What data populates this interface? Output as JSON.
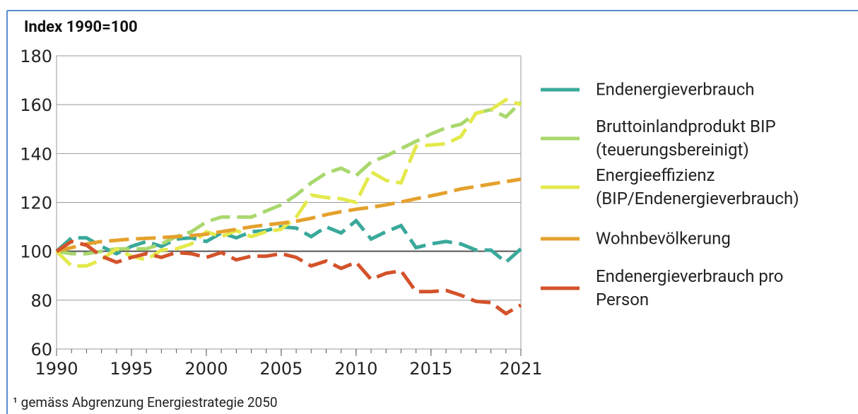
{
  "chart_data": {
    "type": "line",
    "title": "Index 1990=100",
    "footnote": "¹ gemäss Abgrenzung Energiestrategie 2050",
    "x": [
      1990,
      1991,
      1992,
      1993,
      1994,
      1995,
      1996,
      1997,
      1998,
      1999,
      2000,
      2001,
      2002,
      2003,
      2004,
      2005,
      2006,
      2007,
      2008,
      2009,
      2010,
      2011,
      2012,
      2013,
      2014,
      2015,
      2016,
      2017,
      2018,
      2019,
      2020,
      2021
    ],
    "xlim": [
      1990,
      2021
    ],
    "xticks": [
      1990,
      1995,
      2000,
      2005,
      2010,
      2015,
      2021
    ],
    "ylim": [
      60,
      180
    ],
    "yticks": [
      60,
      80,
      100,
      120,
      140,
      160,
      180
    ],
    "grid": true,
    "series": [
      {
        "name": "Endenergieverbrauch",
        "color": "#3aa99b",
        "values": [
          100,
          105.5,
          105.5,
          102,
          99,
          102,
          104,
          102,
          105,
          105.5,
          104,
          107.5,
          105.5,
          108,
          108.5,
          110,
          109.5,
          106,
          110,
          107.5,
          112.5,
          105,
          108,
          110.5,
          101.5,
          103,
          104,
          103,
          100.5,
          100.5,
          95.5,
          101
        ]
      },
      {
        "name": "Bruttoinlandprodukt BIP (teuerungsbereinigt)",
        "color": "#a9d86e",
        "values": [
          100,
          99,
          99,
          100,
          101,
          101,
          101,
          103,
          106,
          108,
          112,
          114,
          114,
          114,
          116.5,
          119,
          123,
          128,
          132,
          134,
          131,
          136.5,
          139,
          142,
          145,
          148,
          150.5,
          152,
          156.5,
          158,
          155,
          161
        ]
      },
      {
        "name": "Energieeffizienz (BIP/Endenergieverbrauch)",
        "color": "#e4e94c",
        "values": [
          100,
          94,
          94,
          96.5,
          101,
          98,
          96.5,
          100.5,
          101,
          103,
          108,
          106,
          108.5,
          106,
          108,
          109,
          114,
          123,
          122,
          121.5,
          120,
          132.5,
          129,
          128,
          143,
          143.5,
          144,
          147,
          156.5,
          158,
          162,
          160
        ]
      },
      {
        "name": "Wohnbevölkerung",
        "color": "#e5a12d",
        "values": [
          100,
          101.5,
          103,
          104,
          104.5,
          105,
          105.3,
          105.6,
          106,
          106.4,
          107,
          108,
          109,
          110,
          110.8,
          111.5,
          112.3,
          113.5,
          115,
          116.2,
          117.2,
          118,
          119,
          120.2,
          121.5,
          122.7,
          124,
          125.5,
          126.5,
          127.5,
          128.5,
          129.5
        ]
      },
      {
        "name": "Endenergieverbrauch pro Person",
        "color": "#d4522a",
        "values": [
          100,
          104,
          102.5,
          98,
          95.5,
          97.5,
          99,
          97.5,
          99.5,
          99,
          97.5,
          99.5,
          96.5,
          98,
          98,
          99,
          97.5,
          94,
          96,
          93,
          95.5,
          88.5,
          91,
          92,
          83.5,
          83.5,
          84,
          82,
          79.5,
          79,
          74.5,
          78
        ]
      }
    ]
  }
}
